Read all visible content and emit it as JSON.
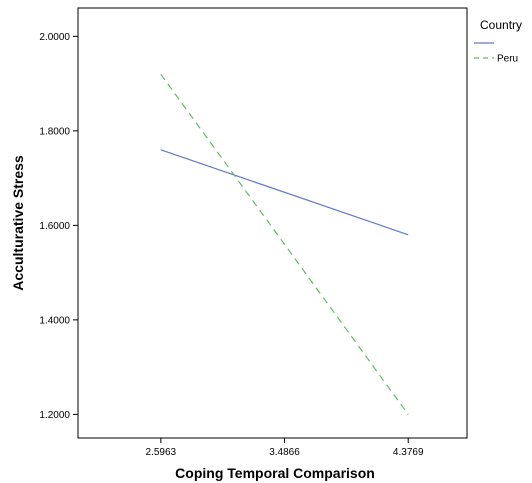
{
  "chart_data": {
    "type": "line",
    "title": "",
    "xlabel": "Coping Temporal Comparison",
    "ylabel": "Acculturative Stress",
    "x_ticks": [
      "2.5963",
      "3.4866",
      "4.3769"
    ],
    "y_ticks": [
      "1.2000",
      "1.4000",
      "1.6000",
      "1.8000",
      "2.0000"
    ],
    "xlim": [
      2.0,
      4.8
    ],
    "ylim": [
      1.15,
      2.06
    ],
    "grid": false,
    "legend": {
      "title": "Country",
      "placement": "right"
    },
    "series": [
      {
        "name": "",
        "color": "#6677cc",
        "dash": "solid",
        "x": [
          2.5963,
          4.3769
        ],
        "y": [
          1.76,
          1.58
        ]
      },
      {
        "name": "Peru",
        "color": "#66bb66",
        "dash": "dashed",
        "x": [
          2.5963,
          4.3769
        ],
        "y": [
          1.92,
          1.2
        ]
      }
    ]
  }
}
